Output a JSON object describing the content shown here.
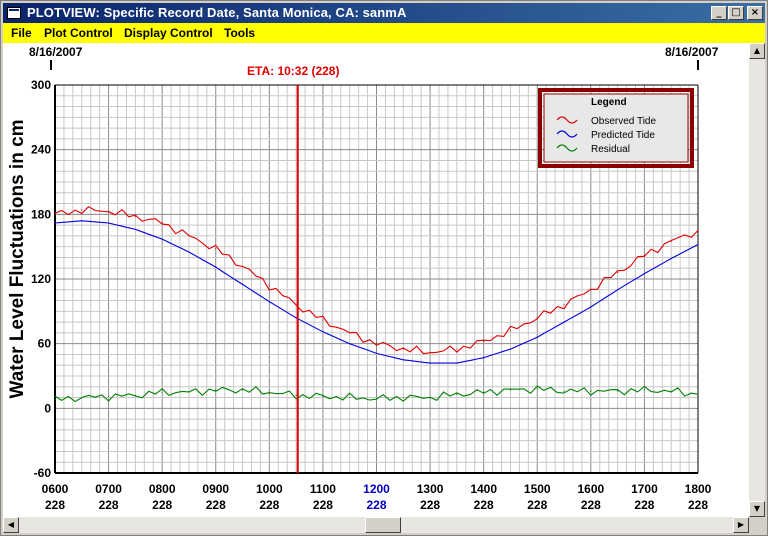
{
  "window": {
    "title": "PLOTVIEW: Specific Record Date, Santa Monica, CA: sanmA",
    "minimize_glyph": "_",
    "maximize_glyph": "□",
    "close_glyph": "×"
  },
  "menu": {
    "items": [
      {
        "label": "File"
      },
      {
        "label": "Plot Control"
      },
      {
        "label": "Display Control"
      },
      {
        "label": "Tools"
      }
    ]
  },
  "plot": {
    "start_date": "8/16/2007",
    "end_date": "8/16/2007",
    "eta_label": "ETA: 10:32 (228)"
  },
  "colors": {
    "observed": "#e00000",
    "predicted": "#0000e0",
    "residual": "#008000",
    "eta_line": "#e00000",
    "highlight_tick": "#0000c0",
    "legend_border": "#8b0000"
  },
  "chart_data": {
    "type": "line",
    "title": "",
    "xlabel": "",
    "ylabel": "Water Level Fluctuations in cm",
    "xlim": [
      6,
      18
    ],
    "ylim": [
      -60,
      300
    ],
    "grid": true,
    "legend_placement": "top-right",
    "legend_title": "Legend",
    "y_ticks": [
      "300",
      "240",
      "180",
      "120",
      "60",
      "0",
      "-60"
    ],
    "x_ticks": [
      {
        "time": "0600",
        "day": "228"
      },
      {
        "time": "0700",
        "day": "228"
      },
      {
        "time": "0800",
        "day": "228"
      },
      {
        "time": "0900",
        "day": "228"
      },
      {
        "time": "1000",
        "day": "228"
      },
      {
        "time": "1100",
        "day": "228"
      },
      {
        "time": "1200",
        "day": "228",
        "highlight": true
      },
      {
        "time": "1300",
        "day": "228"
      },
      {
        "time": "1400",
        "day": "228"
      },
      {
        "time": "1500",
        "day": "228"
      },
      {
        "time": "1600",
        "day": "228"
      },
      {
        "time": "1700",
        "day": "228"
      },
      {
        "time": "1800",
        "day": "228"
      }
    ],
    "eta_x": 10.53,
    "series": [
      {
        "name": "Observed Tide",
        "color": "#e00000",
        "x": [
          6.0,
          6.5,
          7.0,
          7.5,
          8.0,
          8.5,
          9.0,
          9.5,
          10.0,
          10.5,
          11.0,
          11.5,
          12.0,
          12.5,
          13.0,
          13.5,
          14.0,
          14.5,
          15.0,
          15.5,
          16.0,
          16.5,
          17.0,
          17.5,
          18.0
        ],
        "y": [
          180,
          184,
          183,
          178,
          172,
          160,
          148,
          132,
          114,
          96,
          82,
          70,
          60,
          55,
          52,
          55,
          62,
          72,
          84,
          96,
          110,
          126,
          142,
          155,
          165
        ]
      },
      {
        "name": "Predicted Tide",
        "color": "#0000e0",
        "x": [
          6.0,
          6.5,
          7.0,
          7.5,
          8.0,
          8.5,
          9.0,
          9.5,
          10.0,
          10.5,
          11.0,
          11.5,
          12.0,
          12.5,
          13.0,
          13.5,
          14.0,
          14.5,
          15.0,
          15.5,
          16.0,
          16.5,
          17.0,
          17.5,
          18.0
        ],
        "y": [
          172,
          174,
          172,
          166,
          157,
          145,
          131,
          115,
          99,
          84,
          71,
          60,
          51,
          45,
          42,
          42,
          47,
          55,
          66,
          80,
          94,
          110,
          125,
          139,
          152
        ]
      },
      {
        "name": "Residual",
        "color": "#008000",
        "x": [
          6.0,
          6.5,
          7.0,
          7.5,
          8.0,
          8.5,
          9.0,
          9.5,
          10.0,
          10.5,
          11.0,
          11.5,
          12.0,
          12.5,
          13.0,
          13.5,
          14.0,
          14.5,
          15.0,
          15.5,
          16.0,
          16.5,
          17.0,
          17.5,
          18.0
        ],
        "y": [
          8,
          10,
          11,
          12,
          15,
          15,
          17,
          17,
          15,
          12,
          11,
          10,
          9,
          10,
          10,
          13,
          15,
          17,
          18,
          16,
          16,
          16,
          17,
          16,
          13
        ]
      }
    ]
  }
}
